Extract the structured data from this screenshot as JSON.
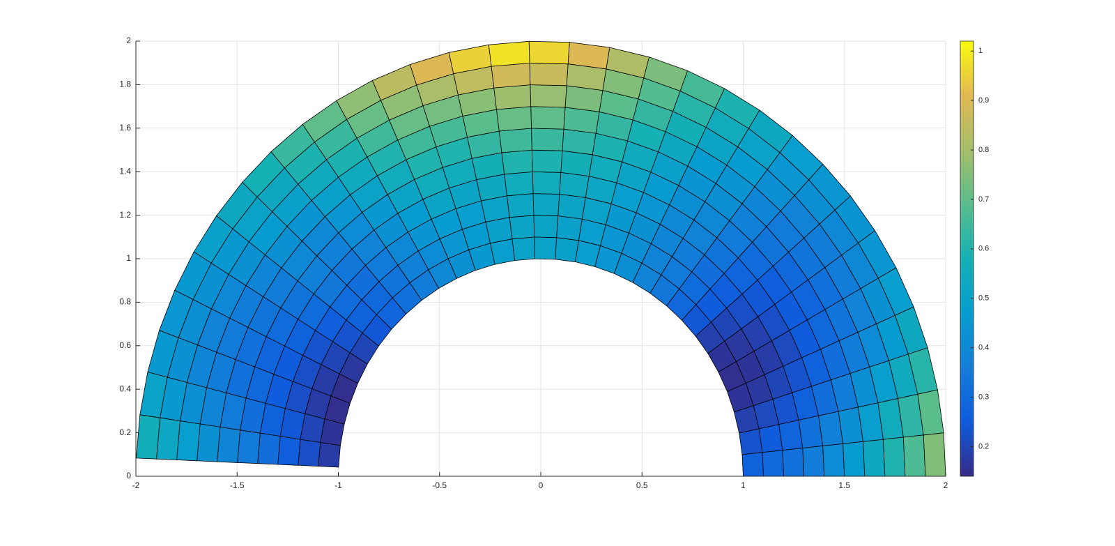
{
  "chart_data": {
    "type": "polar-mesh",
    "rlim": [
      1,
      2
    ],
    "theta_lim": [
      0,
      177.6
    ],
    "values": [
      [
        0.27,
        0.23,
        0.19,
        0.16,
        0.15,
        0.16,
        0.19,
        0.24,
        0.29,
        0.34,
        0.38,
        0.42,
        0.45,
        0.48,
        0.49,
        0.5,
        0.5,
        0.48,
        0.46,
        0.43,
        0.4,
        0.36,
        0.32,
        0.28,
        0.24,
        0.2,
        0.17,
        0.15,
        0.15,
        0.16,
        0.18
      ],
      [
        0.29,
        0.25,
        0.21,
        0.17,
        0.16,
        0.17,
        0.2,
        0.25,
        0.3,
        0.35,
        0.38,
        0.42,
        0.45,
        0.48,
        0.49,
        0.51,
        0.51,
        0.49,
        0.47,
        0.45,
        0.41,
        0.37,
        0.33,
        0.29,
        0.27,
        0.23,
        0.2,
        0.18,
        0.18,
        0.2,
        0.22
      ],
      [
        0.32,
        0.28,
        0.23,
        0.2,
        0.18,
        0.19,
        0.22,
        0.26,
        0.31,
        0.36,
        0.39,
        0.43,
        0.46,
        0.5,
        0.51,
        0.52,
        0.52,
        0.5,
        0.48,
        0.47,
        0.44,
        0.4,
        0.35,
        0.31,
        0.3,
        0.26,
        0.23,
        0.22,
        0.22,
        0.24,
        0.26
      ],
      [
        0.36,
        0.32,
        0.27,
        0.23,
        0.21,
        0.22,
        0.24,
        0.28,
        0.33,
        0.38,
        0.4,
        0.45,
        0.48,
        0.52,
        0.54,
        0.55,
        0.55,
        0.53,
        0.51,
        0.51,
        0.47,
        0.43,
        0.38,
        0.34,
        0.34,
        0.3,
        0.27,
        0.25,
        0.25,
        0.27,
        0.31
      ],
      [
        0.41,
        0.37,
        0.31,
        0.27,
        0.25,
        0.25,
        0.26,
        0.3,
        0.35,
        0.4,
        0.42,
        0.47,
        0.51,
        0.55,
        0.57,
        0.59,
        0.6,
        0.57,
        0.55,
        0.55,
        0.51,
        0.46,
        0.41,
        0.37,
        0.37,
        0.33,
        0.3,
        0.28,
        0.29,
        0.31,
        0.35
      ],
      [
        0.47,
        0.42,
        0.36,
        0.31,
        0.29,
        0.28,
        0.29,
        0.33,
        0.37,
        0.42,
        0.44,
        0.49,
        0.54,
        0.59,
        0.62,
        0.64,
        0.65,
        0.63,
        0.6,
        0.6,
        0.55,
        0.5,
        0.45,
        0.4,
        0.4,
        0.36,
        0.33,
        0.32,
        0.32,
        0.35,
        0.39
      ],
      [
        0.53,
        0.48,
        0.42,
        0.36,
        0.33,
        0.32,
        0.33,
        0.35,
        0.39,
        0.44,
        0.47,
        0.53,
        0.58,
        0.63,
        0.67,
        0.7,
        0.71,
        0.69,
        0.66,
        0.65,
        0.6,
        0.54,
        0.49,
        0.44,
        0.43,
        0.39,
        0.36,
        0.35,
        0.36,
        0.39,
        0.43
      ],
      [
        0.6,
        0.55,
        0.48,
        0.41,
        0.38,
        0.36,
        0.36,
        0.38,
        0.42,
        0.47,
        0.51,
        0.57,
        0.63,
        0.69,
        0.74,
        0.78,
        0.79,
        0.76,
        0.73,
        0.71,
        0.65,
        0.59,
        0.54,
        0.49,
        0.47,
        0.43,
        0.4,
        0.38,
        0.39,
        0.42,
        0.48
      ],
      [
        0.67,
        0.62,
        0.54,
        0.47,
        0.43,
        0.4,
        0.4,
        0.42,
        0.45,
        0.5,
        0.55,
        0.61,
        0.68,
        0.75,
        0.81,
        0.86,
        0.88,
        0.85,
        0.81,
        0.77,
        0.71,
        0.64,
        0.59,
        0.53,
        0.5,
        0.46,
        0.43,
        0.42,
        0.43,
        0.46,
        0.52
      ],
      [
        0.75,
        0.69,
        0.61,
        0.53,
        0.48,
        0.45,
        0.44,
        0.45,
        0.48,
        0.53,
        0.59,
        0.66,
        0.74,
        0.82,
        0.9,
        0.96,
        0.98,
        0.95,
        0.9,
        0.84,
        0.77,
        0.7,
        0.64,
        0.58,
        0.53,
        0.49,
        0.46,
        0.45,
        0.46,
        0.5,
        0.56
      ]
    ],
    "xlim": [
      -2,
      2
    ],
    "xticks": [
      -2,
      -1.5,
      -1,
      -0.5,
      0,
      0.5,
      1,
      1.5,
      2
    ],
    "ylim": [
      0,
      2
    ],
    "yticks": [
      0,
      0.2,
      0.4,
      0.6,
      0.8,
      1,
      1.2,
      1.4,
      1.6,
      1.8,
      2
    ],
    "clim": [
      0.14,
      1.02
    ],
    "cticks": [
      0.2,
      0.3,
      0.4,
      0.5,
      0.6,
      0.7,
      0.8,
      0.9,
      1
    ],
    "colormap": "parula",
    "grid": true
  }
}
